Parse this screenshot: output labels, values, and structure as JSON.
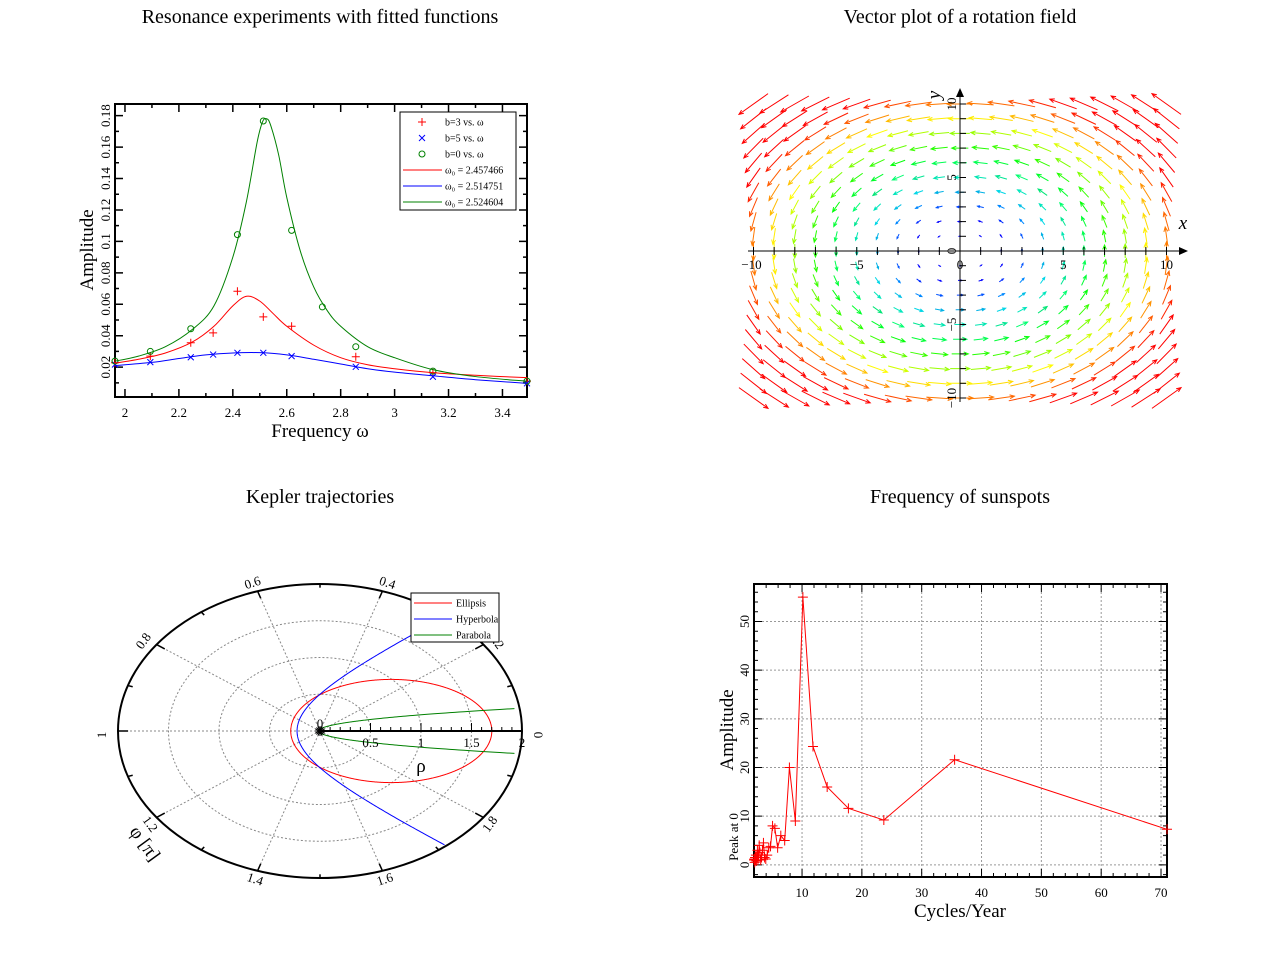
{
  "chart_data": [
    {
      "type": "line",
      "title": "Resonance experiments with fitted functions",
      "xlabel": "Frequency ω",
      "ylabel": "Amplitude",
      "xlim": [
        1.963,
        3.491
      ],
      "ylim": [
        0.001,
        0.1874
      ],
      "xticks": [
        "2",
        "2.2",
        "2.4",
        "2.6",
        "2.8",
        "3",
        "3.2",
        "3.4"
      ],
      "yticks": [
        "0.02",
        "0.04",
        "0.06",
        "0.08",
        "0.1",
        "0.12",
        "0.14",
        "0.16",
        "0.18"
      ],
      "legend_position": "top-right",
      "x": [
        1.963,
        2.094,
        2.244,
        2.327,
        2.417,
        2.513,
        2.618,
        2.732,
        2.856,
        3.142,
        3.491
      ],
      "series": [
        {
          "name": "b=3 vs. ω",
          "marker": "plus",
          "color": "#ff0000",
          "points": [
            [
              1.963,
              0.0228
            ],
            [
              2.094,
              0.027
            ],
            [
              2.244,
              0.0355
            ],
            [
              2.327,
              0.0418
            ],
            [
              2.417,
              0.0683
            ],
            [
              2.513,
              0.052
            ],
            [
              2.618,
              0.046
            ],
            [
              2.856,
              0.0266
            ],
            [
              3.142,
              0.0164
            ],
            [
              3.491,
              0.0111
            ]
          ]
        },
        {
          "name": "b=5 vs. ω",
          "marker": "cross",
          "color": "#0000ff",
          "points": [
            [
              1.963,
              0.0217
            ],
            [
              2.094,
              0.0232
            ],
            [
              2.244,
              0.0263
            ],
            [
              2.327,
              0.028
            ],
            [
              2.417,
              0.0291
            ],
            [
              2.513,
              0.0291
            ],
            [
              2.618,
              0.027
            ],
            [
              2.856,
              0.0202
            ],
            [
              3.142,
              0.0139
            ],
            [
              3.491,
              0.0097
            ]
          ]
        },
        {
          "name": "b=0 vs. ω",
          "marker": "circle",
          "color": "#008000",
          "points": [
            [
              1.963,
              0.0238
            ],
            [
              2.094,
              0.03
            ],
            [
              2.244,
              0.0444
            ],
            [
              2.417,
              0.1043
            ],
            [
              2.513,
              0.1766
            ],
            [
              2.618,
              0.107
            ],
            [
              2.732,
              0.0583
            ],
            [
              2.856,
              0.033
            ],
            [
              3.142,
              0.0175
            ],
            [
              3.491,
              0.0111
            ]
          ]
        },
        {
          "name": "ω₀ = 2.457466",
          "line": true,
          "color": "#ff0000",
          "points": [
            [
              1.963,
              0.0225
            ],
            [
              2.05,
              0.025
            ],
            [
              2.15,
              0.029
            ],
            [
              2.25,
              0.036
            ],
            [
              2.33,
              0.046
            ],
            [
              2.4,
              0.059
            ],
            [
              2.451,
              0.0651
            ],
            [
              2.5,
              0.062
            ],
            [
              2.55,
              0.054
            ],
            [
              2.6,
              0.046
            ],
            [
              2.7,
              0.034
            ],
            [
              2.8,
              0.026
            ],
            [
              2.9,
              0.0215
            ],
            [
              3.0,
              0.019
            ],
            [
              3.14,
              0.0165
            ],
            [
              3.3,
              0.0148
            ],
            [
              3.491,
              0.0133
            ]
          ]
        },
        {
          "name": "ω₀ = 2.514751",
          "line": true,
          "color": "#0000ff",
          "points": [
            [
              1.963,
              0.021
            ],
            [
              2.1,
              0.023
            ],
            [
              2.2,
              0.0255
            ],
            [
              2.3,
              0.0278
            ],
            [
              2.4,
              0.029
            ],
            [
              2.5,
              0.0292
            ],
            [
              2.6,
              0.0278
            ],
            [
              2.7,
              0.025
            ],
            [
              2.8,
              0.022
            ],
            [
              2.9,
              0.019
            ],
            [
              3.0,
              0.0168
            ],
            [
              3.14,
              0.0145
            ],
            [
              3.3,
              0.012
            ],
            [
              3.491,
              0.0097
            ]
          ]
        },
        {
          "name": "ω₀ = 2.524604",
          "line": true,
          "color": "#008000",
          "points": [
            [
              1.963,
              0.0238
            ],
            [
              2.05,
              0.027
            ],
            [
              2.15,
              0.033
            ],
            [
              2.25,
              0.044
            ],
            [
              2.33,
              0.059
            ],
            [
              2.4,
              0.09
            ],
            [
              2.45,
              0.125
            ],
            [
              2.49,
              0.163
            ],
            [
              2.51,
              0.176
            ],
            [
              2.525,
              0.178
            ],
            [
              2.54,
              0.174
            ],
            [
              2.57,
              0.155
            ],
            [
              2.6,
              0.128
            ],
            [
              2.65,
              0.094
            ],
            [
              2.7,
              0.071
            ],
            [
              2.75,
              0.056
            ],
            [
              2.8,
              0.046
            ],
            [
              2.9,
              0.033
            ],
            [
              3.0,
              0.026
            ],
            [
              3.14,
              0.0185
            ],
            [
              3.3,
              0.014
            ],
            [
              3.491,
              0.011
            ]
          ]
        }
      ]
    },
    {
      "type": "vector field",
      "title": "Vector plot of a rotation field",
      "xlabel": "x",
      "ylabel": "y",
      "field": "(-y, x)",
      "xlim": [
        -10,
        10
      ],
      "ylim": [
        -10,
        10
      ],
      "grid_step": 1,
      "xticks": [
        "−10",
        "−5",
        "0",
        "5",
        "10"
      ],
      "yticks": [
        "−10",
        "−5",
        "0",
        "5",
        "10"
      ],
      "colormap": "magnitude: blue → cyan → green → yellow → orange → red"
    },
    {
      "type": "polar",
      "title": "Kepler trajectories",
      "rlabel": "ρ",
      "philabel": "φ [π]",
      "rlim": [
        0,
        2
      ],
      "rticks": [
        "0",
        "0.5",
        "1",
        "1.5",
        "2"
      ],
      "phiticks": [
        "0",
        "0.2",
        "0.4",
        "0.6",
        "0.8",
        "1",
        "1.2",
        "1.4",
        "1.6",
        "1.8"
      ],
      "legend_position": "top-right",
      "series": [
        {
          "name": "Ellipsis",
          "color": "#ff0000",
          "e": 0.709,
          "p": 0.495
        },
        {
          "name": "Hyperbola",
          "color": "#0000ff",
          "e": 1.2,
          "p": 0.5
        },
        {
          "name": "Parabola",
          "color": "#008000",
          "e": 1.0,
          "p": 0.024
        }
      ]
    },
    {
      "type": "line",
      "title": "Frequency of sunspots",
      "xlabel": "Cycles/Year",
      "ylabel": "Amplitude",
      "ylabel2": "Peak at 0",
      "xlim": [
        1.97,
        71
      ],
      "ylim": [
        -2.5,
        57.7
      ],
      "grid": true,
      "xticks": [
        "10",
        "20",
        "30",
        "40",
        "50",
        "60",
        "70"
      ],
      "yticks": [
        "0",
        "10",
        "20",
        "30",
        "40",
        "50"
      ],
      "series": [
        {
          "marker": "plus",
          "color": "#ff0000",
          "points": [
            [
              71,
              7.3
            ],
            [
              35.5,
              21.6
            ],
            [
              23.67,
              9.2
            ],
            [
              17.75,
              11.6
            ],
            [
              14.2,
              16
            ],
            [
              11.83,
              24.3
            ],
            [
              10.14,
              55
            ],
            [
              8.88,
              9
            ],
            [
              7.89,
              20
            ],
            [
              7.1,
              5
            ],
            [
              6.45,
              6
            ],
            [
              5.92,
              3.5
            ],
            [
              5.46,
              7.5
            ],
            [
              5.07,
              8
            ],
            [
              4.73,
              3.8
            ],
            [
              4.44,
              3.5
            ],
            [
              4.18,
              2
            ],
            [
              3.94,
              1.2
            ],
            [
              3.74,
              1.5
            ],
            [
              3.55,
              4.5
            ],
            [
              3.38,
              3
            ],
            [
              3.23,
              1.5
            ],
            [
              3.09,
              1
            ],
            [
              2.96,
              2.5
            ],
            [
              2.84,
              4
            ],
            [
              2.73,
              2
            ],
            [
              2.63,
              1
            ],
            [
              2.54,
              3
            ],
            [
              2.45,
              1.5
            ],
            [
              2.37,
              0.8
            ],
            [
              2.29,
              2
            ],
            [
              2.22,
              1
            ],
            [
              2.15,
              1.5
            ],
            [
              2.09,
              0.5
            ],
            [
              2.03,
              1.2
            ],
            [
              1.97,
              1
            ]
          ]
        }
      ]
    }
  ]
}
